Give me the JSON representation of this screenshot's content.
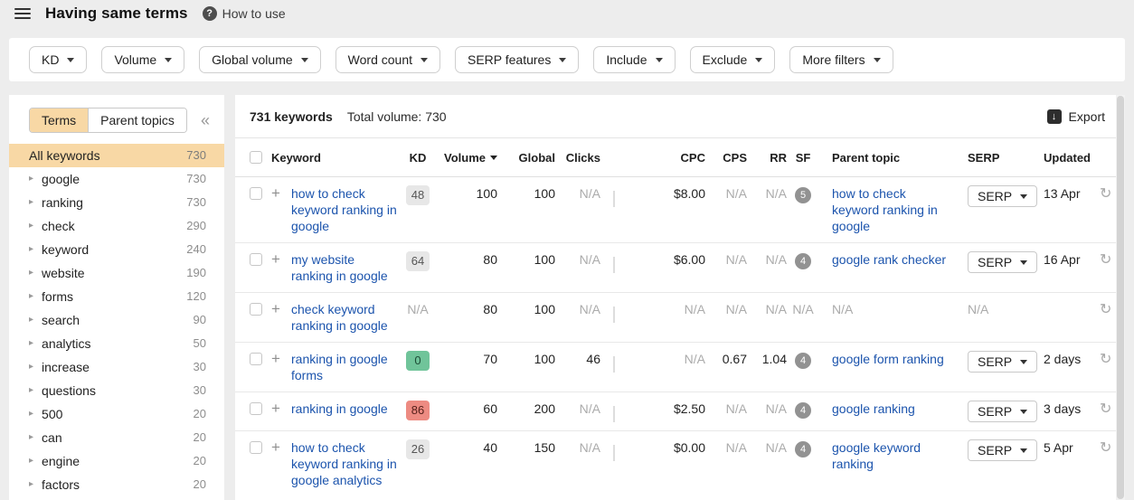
{
  "topbar": {
    "title": "Having same terms",
    "help_label": "How to use"
  },
  "filters": [
    "KD",
    "Volume",
    "Global volume",
    "Word count",
    "SERP features",
    "Include",
    "Exclude",
    "More filters"
  ],
  "sidebar": {
    "tabs": [
      {
        "label": "Terms",
        "active": true
      },
      {
        "label": "Parent topics",
        "active": false
      }
    ],
    "all_keywords": {
      "label": "All keywords",
      "count": "730"
    },
    "terms": [
      {
        "label": "google",
        "count": "730"
      },
      {
        "label": "ranking",
        "count": "730"
      },
      {
        "label": "check",
        "count": "290"
      },
      {
        "label": "keyword",
        "count": "240"
      },
      {
        "label": "website",
        "count": "190"
      },
      {
        "label": "forms",
        "count": "120"
      },
      {
        "label": "search",
        "count": "90"
      },
      {
        "label": "analytics",
        "count": "50"
      },
      {
        "label": "increase",
        "count": "30"
      },
      {
        "label": "questions",
        "count": "30"
      },
      {
        "label": "500",
        "count": "20"
      },
      {
        "label": "can",
        "count": "20"
      },
      {
        "label": "engine",
        "count": "20"
      },
      {
        "label": "factors",
        "count": "20"
      }
    ]
  },
  "toolbar": {
    "keywords_count": "731 keywords",
    "total_volume": "Total volume: 730",
    "export_label": "Export"
  },
  "table": {
    "headers": {
      "keyword": "Keyword",
      "kd": "KD",
      "volume": "Volume",
      "global": "Global",
      "clicks": "Clicks",
      "cpc": "CPC",
      "cps": "CPS",
      "rr": "RR",
      "sf": "SF",
      "parent_topic": "Parent topic",
      "serp": "SERP",
      "updated": "Updated"
    },
    "serp_button": "SERP",
    "na_text": "N/A",
    "rows": [
      {
        "keyword": "how to check keyword ranking in google",
        "kd": "48",
        "kd_style": "gray",
        "volume": "100",
        "global": "100",
        "clicks": "N/A",
        "cpc": "$8.00",
        "cps": "N/A",
        "rr": "N/A",
        "sf": "5",
        "parent_topic": "how to check keyword ranking in google",
        "has_serp": true,
        "updated": "13 Apr"
      },
      {
        "keyword": "my website ranking in google",
        "kd": "64",
        "kd_style": "gray",
        "volume": "80",
        "global": "100",
        "clicks": "N/A",
        "cpc": "$6.00",
        "cps": "N/A",
        "rr": "N/A",
        "sf": "4",
        "parent_topic": "google rank checker",
        "has_serp": true,
        "updated": "16 Apr"
      },
      {
        "keyword": "check keyword ranking in google",
        "kd": "N/A",
        "kd_style": "na",
        "volume": "80",
        "global": "100",
        "clicks": "N/A",
        "cpc": "N/A",
        "cps": "N/A",
        "rr": "N/A",
        "sf": "N/A",
        "parent_topic": "N/A",
        "has_serp": false,
        "updated": ""
      },
      {
        "keyword": "ranking in google forms",
        "kd": "0",
        "kd_style": "green",
        "volume": "70",
        "global": "100",
        "clicks": "46",
        "cpc": "N/A",
        "cps": "0.67",
        "rr": "1.04",
        "sf": "4",
        "parent_topic": "google form ranking",
        "has_serp": true,
        "updated": "2 days"
      },
      {
        "keyword": "ranking in google",
        "kd": "86",
        "kd_style": "red",
        "volume": "60",
        "global": "200",
        "clicks": "N/A",
        "cpc": "$2.50",
        "cps": "N/A",
        "rr": "N/A",
        "sf": "4",
        "parent_topic": "google ranking",
        "has_serp": true,
        "updated": "3 days"
      },
      {
        "keyword": "how to check keyword ranking in google analytics",
        "kd": "26",
        "kd_style": "gray",
        "volume": "40",
        "global": "150",
        "clicks": "N/A",
        "cpc": "$0.00",
        "cps": "N/A",
        "rr": "N/A",
        "sf": "4",
        "parent_topic": "google keyword ranking",
        "has_serp": true,
        "updated": "5 Apr"
      }
    ]
  },
  "icons": {
    "help": "?",
    "collapse": "«",
    "expander": "▸",
    "plus": "+",
    "refresh": "↻",
    "export_arrow": "↓"
  },
  "colors": {
    "accent_orange": "#f8d8a5",
    "link_blue": "#1c54ad",
    "kd_green": "#70c49a",
    "kd_red": "#ed8b82",
    "kd_gray_bg": "#e7e7e7"
  }
}
